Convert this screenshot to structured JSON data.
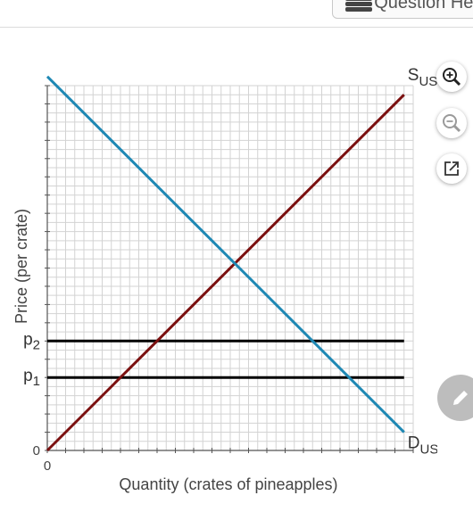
{
  "toolbar": {
    "question_help_label": "Question Help"
  },
  "chart_data": {
    "type": "line",
    "ylabel": "Price (per crate)",
    "xlabel": "Quantity (crates of pineapples)",
    "x_origin_label": "0",
    "y_origin_label": "0",
    "xlim": [
      0,
      20
    ],
    "ylim": [
      0,
      20
    ],
    "grid": true,
    "series": [
      {
        "name": "S_US",
        "label_main": "S",
        "label_sub": "US",
        "color": "#7b1010",
        "x": [
          0,
          19.5
        ],
        "y": [
          0,
          19.5
        ]
      },
      {
        "name": "D_US",
        "label_main": "D",
        "label_sub": "US",
        "color": "#1e88b4",
        "x": [
          0,
          19.5
        ],
        "y": [
          20.5,
          1
        ]
      }
    ],
    "price_lines": [
      {
        "label_main": "p",
        "label_sub": "2",
        "y": 6,
        "x_end": 19.5,
        "color": "#000000"
      },
      {
        "label_main": "p",
        "label_sub": "1",
        "y": 4,
        "x_end": 19.5,
        "color": "#000000"
      }
    ]
  }
}
